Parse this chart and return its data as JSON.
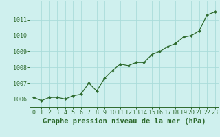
{
  "x": [
    0,
    1,
    2,
    3,
    4,
    5,
    6,
    7,
    8,
    9,
    10,
    11,
    12,
    13,
    14,
    15,
    16,
    17,
    18,
    19,
    20,
    21,
    22,
    23
  ],
  "y": [
    1006.1,
    1005.9,
    1006.1,
    1006.1,
    1006.0,
    1006.2,
    1006.3,
    1007.0,
    1006.5,
    1007.3,
    1007.8,
    1008.2,
    1008.1,
    1008.3,
    1008.3,
    1008.8,
    1009.0,
    1009.3,
    1009.5,
    1009.9,
    1010.0,
    1010.3,
    1011.3,
    1011.5
  ],
  "line_color": "#2d6a2d",
  "marker_color": "#2d6a2d",
  "bg_color": "#cff0ee",
  "grid_color": "#aadcda",
  "xlabel": "Graphe pression niveau de la mer (hPa)",
  "ylim_min": 1005.5,
  "ylim_max": 1012.2,
  "yticks": [
    1006,
    1007,
    1008,
    1009,
    1010,
    1011
  ],
  "xlabel_fontsize": 7.5,
  "tick_fontsize": 6.0
}
